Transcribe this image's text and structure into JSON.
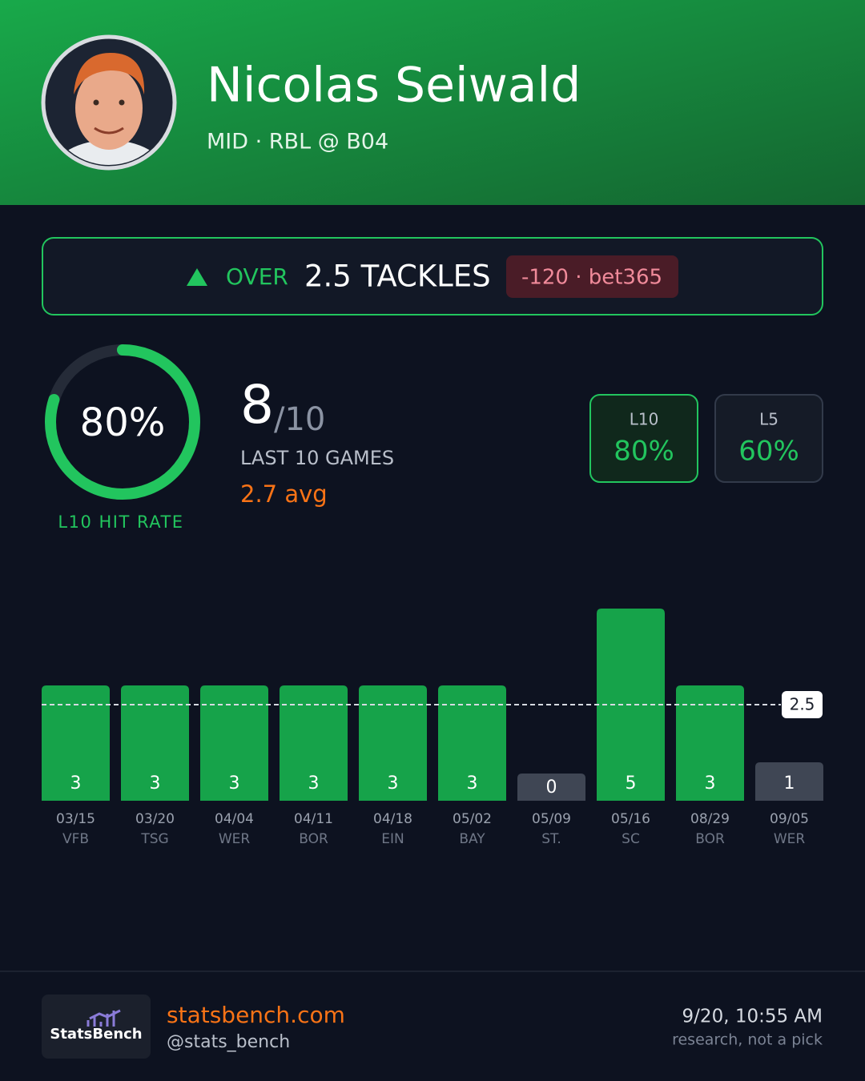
{
  "header": {
    "name": "Nicolas Seiwald",
    "subtitle": "MID · RBL @ B04"
  },
  "prop": {
    "direction": "OVER",
    "market": "2.5 TACKLES",
    "odds": "-120 · bet365"
  },
  "hit_rate": {
    "value": 80,
    "label": "80%",
    "caption": "L10 HIT RATE"
  },
  "record": {
    "hits": 8,
    "games": {
      "value": 10,
      "label": "/10"
    },
    "caption": "LAST 10 GAMES",
    "average": {
      "value": 2.7,
      "label": "2.7 avg"
    }
  },
  "splits": [
    {
      "name": "L10",
      "value": 80,
      "label": "80%"
    },
    {
      "name": "L5",
      "value": 60,
      "label": "60%"
    }
  ],
  "active_split": "L10",
  "chart_data": {
    "type": "bar",
    "categories": [
      "03/15",
      "03/20",
      "04/04",
      "04/11",
      "04/18",
      "05/02",
      "05/09",
      "05/16",
      "08/29",
      "09/05"
    ],
    "teams": [
      "VFB",
      "TSG",
      "WER",
      "BOR",
      "EIN",
      "BAY",
      "ST.",
      "SC",
      "BOR",
      "WER"
    ],
    "values": [
      3,
      3,
      3,
      3,
      3,
      3,
      0,
      5,
      3,
      1
    ],
    "threshold": 2.5,
    "color": "#16a34a",
    "miss_color": "#3f4654",
    "ylim": [
      0,
      5
    ]
  },
  "footer": {
    "logo": "StatsBench",
    "site": "statsbench.com",
    "handle": "@stats_bench",
    "timestamp": "9/20, 10:55 AM",
    "disclaimer": "research, not a pick"
  }
}
